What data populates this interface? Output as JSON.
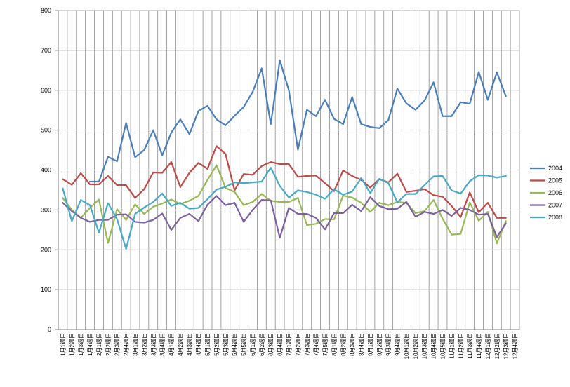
{
  "chart_data": {
    "type": "line",
    "ylim": [
      0,
      800
    ],
    "yticks": [
      0,
      100,
      200,
      300,
      400,
      500,
      600,
      700,
      800
    ],
    "grid": true,
    "legend_position": "right",
    "categories": [
      "1月1週目",
      "1月2週目",
      "1月3週目",
      "1月4週目",
      "2月1週目",
      "2月2週目",
      "2月3週目",
      "2月4週目",
      "3月1週目",
      "3月2週目",
      "3月3週目",
      "3月4週目",
      "4月1週目",
      "4月2週目",
      "4月3週目",
      "4月4週目",
      "5月1週目",
      "5月2週目",
      "5月3週目",
      "5月4週目",
      "5月5週目",
      "6月1週目",
      "6月2週目",
      "6月3週目",
      "6月4週目",
      "7月1週目",
      "7月2週目",
      "7月3週目",
      "7月4週目",
      "7月5週目",
      "8月1週目",
      "8月2週目",
      "8月3週目",
      "8月4週目",
      "9月1週目",
      "9月2週目",
      "9月3週目",
      "9月4週目",
      "10月1週目",
      "10月2週目",
      "10月3週目",
      "10月4週目",
      "10月5週目",
      "11月1週目",
      "11月2週目",
      "11月3週目",
      "11月4週目",
      "12月1週目",
      "12月2週目",
      "12月3週目",
      "12月4週目"
    ],
    "visible_tick_labels": [
      "1月1週目",
      "1月2週目",
      "1月3週目",
      "1月4週目",
      "2月1週目",
      "2月2週目",
      "2月3週目",
      "2月4週目",
      "3月1週目",
      "3月2週目",
      "3月3週目",
      "3月4週目",
      "4月1週目",
      "4月2週目",
      "4月3週目",
      "4月4週目",
      "5月1週目",
      "5月2週目",
      "5月3週目",
      "5月4週目",
      "5月5週目",
      "6月1週目",
      "6月2週目",
      "6月3週目",
      "6月4週目",
      "7月1週目",
      "7月2週目",
      "7月3週目",
      "7月4週目",
      "7月5週目",
      "8月1週目",
      "8月2週目",
      "8月3週目",
      "8月4週目",
      "9月1週目",
      "9月2週目",
      "9月3週目",
      "9月4週目",
      "10月1週目",
      "10月2週目",
      "10月3週目",
      "10月4週目",
      "10月5週目",
      "11月1週目",
      "11月2週目",
      "11月3週目",
      "11月4週目",
      "12月1週目",
      "12月2週目",
      "12月3週目",
      "12月4週目"
    ],
    "series": [
      {
        "name": "2004",
        "color": "#4a7ebb",
        "values": [
          null,
          null,
          null,
          371,
          371,
          433,
          422,
          518,
          432,
          450,
          500,
          437,
          494,
          527,
          490,
          548,
          561,
          527,
          512,
          536,
          558,
          596,
          655,
          515,
          675,
          600,
          451,
          551,
          535,
          576,
          528,
          515,
          583,
          515,
          508,
          505,
          525,
          604,
          567,
          551,
          574,
          620,
          535,
          535,
          570,
          566,
          646,
          576,
          645,
          585,
          null
        ]
      },
      {
        "name": "2005",
        "color": "#be4b48",
        "values": [
          377,
          363,
          392,
          364,
          364,
          385,
          362,
          362,
          330,
          352,
          394,
          393,
          420,
          357,
          393,
          418,
          403,
          460,
          440,
          349,
          390,
          388,
          410,
          420,
          415,
          415,
          383,
          385,
          386,
          367,
          347,
          399,
          385,
          375,
          356,
          377,
          369,
          391,
          345,
          348,
          352,
          337,
          333,
          310,
          282,
          344,
          294,
          318,
          280,
          280,
          null
        ]
      },
      {
        "name": "2006",
        "color": "#98b954",
        "values": [
          330,
          300,
          280,
          305,
          326,
          217,
          302,
          275,
          314,
          290,
          308,
          316,
          326,
          315,
          323,
          335,
          375,
          412,
          355,
          345,
          312,
          320,
          340,
          323,
          320,
          320,
          330,
          262,
          265,
          277,
          276,
          336,
          331,
          318,
          295,
          318,
          312,
          320,
          318,
          292,
          297,
          325,
          278,
          238,
          240,
          319,
          273,
          295,
          216,
          272,
          null
        ]
      },
      {
        "name": "2007",
        "color": "#7d60a0",
        "values": [
          318,
          297,
          280,
          270,
          275,
          275,
          288,
          289,
          270,
          268,
          275,
          291,
          250,
          280,
          290,
          272,
          313,
          335,
          312,
          318,
          270,
          300,
          325,
          324,
          230,
          305,
          290,
          290,
          280,
          251,
          292,
          292,
          313,
          297,
          332,
          310,
          302,
          303,
          320,
          283,
          295,
          290,
          300,
          285,
          305,
          300,
          288,
          290,
          232,
          266,
          null
        ]
      },
      {
        "name": "2008",
        "color": "#46aac5",
        "values": [
          354,
          272,
          325,
          312,
          243,
          317,
          277,
          202,
          290,
          306,
          320,
          341,
          310,
          318,
          303,
          305,
          327,
          351,
          358,
          369,
          367,
          369,
          371,
          406,
          360,
          331,
          349,
          345,
          338,
          328,
          352,
          338,
          346,
          380,
          342,
          378,
          367,
          319,
          340,
          340,
          362,
          384,
          385,
          349,
          341,
          372,
          387,
          386,
          381,
          385,
          null
        ]
      }
    ]
  }
}
